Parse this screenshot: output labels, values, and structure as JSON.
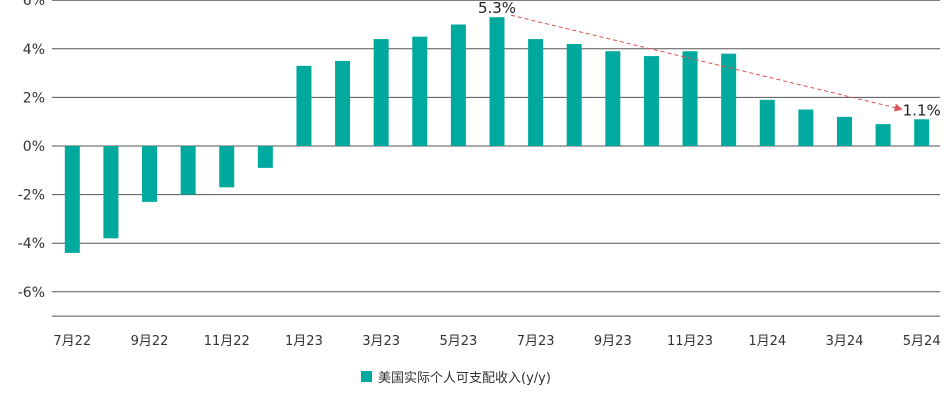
{
  "colors": {
    "bar": "#00a99d",
    "grid": "#555555",
    "text": "#333333",
    "trend": "#d9534f"
  },
  "chart_data": {
    "type": "bar",
    "title": "",
    "xlabel": "",
    "ylabel": "",
    "ylim": [
      -7,
      6
    ],
    "y_ticks": [
      6,
      4,
      2,
      0,
      -2,
      -4,
      -6
    ],
    "y_tick_labels": [
      "6%",
      "4%",
      "2%",
      "0%",
      "-2%",
      "-4%",
      "-6%"
    ],
    "grid": true,
    "legend": "bottom",
    "categories": [
      "7月22",
      "8月22",
      "9月22",
      "10月22",
      "11月22",
      "12月22",
      "1月23",
      "2月23",
      "3月23",
      "4月23",
      "5月23",
      "6月23",
      "7月23",
      "8月23",
      "9月23",
      "10月23",
      "11月23",
      "12月23",
      "1月24",
      "2月24",
      "3月24",
      "4月24",
      "5月24"
    ],
    "x_tick_labels": [
      "7月22",
      "",
      "9月22",
      "",
      "11月22",
      "",
      "1月23",
      "",
      "3月23",
      "",
      "5月23",
      "",
      "7月23",
      "",
      "9月23",
      "",
      "11月23",
      "",
      "1月24",
      "",
      "3月24",
      "",
      "5月24"
    ],
    "series": [
      {
        "name": "美国实际个人可支配收入(y/y)",
        "values": [
          -4.4,
          -3.8,
          -2.3,
          -2.0,
          -1.7,
          -0.9,
          3.3,
          3.5,
          4.4,
          4.5,
          5.0,
          5.3,
          4.4,
          4.2,
          3.9,
          3.7,
          3.9,
          3.8,
          1.9,
          1.5,
          1.2,
          0.9,
          1.1
        ]
      }
    ],
    "annotations": [
      {
        "text": "5.3%",
        "category": "6月23",
        "value": 5.3
      },
      {
        "text": "1.1%",
        "category": "5月24",
        "value": 1.1
      }
    ],
    "trend_line": {
      "from": {
        "category": "6月23",
        "value": 5.3
      },
      "to": {
        "category": "5月24",
        "value": 1.1
      }
    }
  }
}
